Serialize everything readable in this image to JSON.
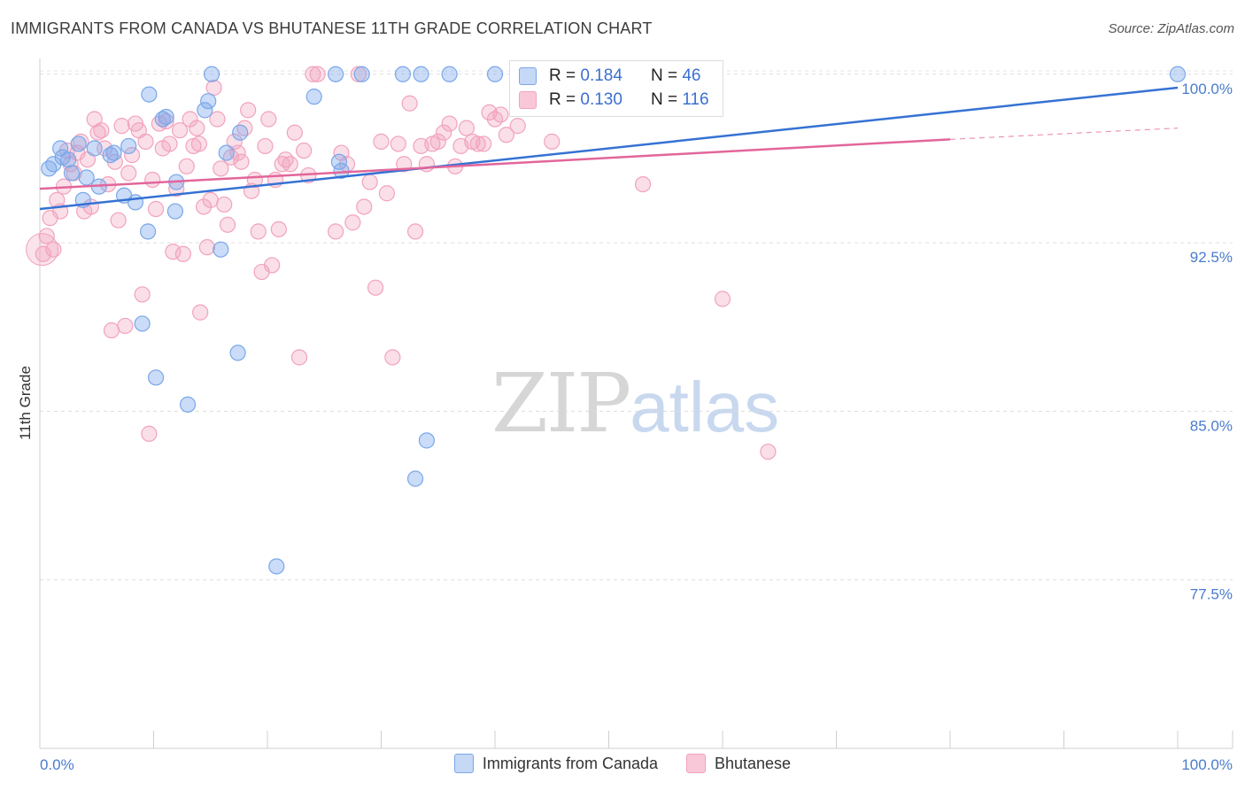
{
  "title": "IMMIGRANTS FROM CANADA VS BHUTANESE 11TH GRADE CORRELATION CHART",
  "source": "Source: ZipAtlas.com",
  "watermark": {
    "zip": "ZIP",
    "atlas": "atlas"
  },
  "legend": {
    "rows": [
      {
        "r_label": "R = ",
        "r_value": "0.184",
        "n_label": "N = ",
        "n_value": "46"
      },
      {
        "r_label": "R = ",
        "r_value": "0.130",
        "n_label": "N = ",
        "n_value": "116"
      }
    ]
  },
  "chart_data": {
    "type": "scatter",
    "title": "IMMIGRANTS FROM CANADA VS BHUTANESE 11TH GRADE CORRELATION CHART",
    "xlabel": "",
    "ylabel": "11th Grade",
    "xlim": [
      0,
      100
    ],
    "ylim": [
      70,
      100.7
    ],
    "x_tick_labels": [
      "0.0%",
      "100.0%"
    ],
    "y_ticks": [
      {
        "value": 100.0,
        "label": "100.0%"
      },
      {
        "value": 92.5,
        "label": "92.5%"
      },
      {
        "value": 85.0,
        "label": "85.0%"
      },
      {
        "value": 77.5,
        "label": "77.5%"
      }
    ],
    "grid": "horizontal dashed",
    "legend_position": "top-center",
    "series": [
      {
        "name": "Immigrants from Canada",
        "color": "#7aa7ea",
        "line_color": "#3572d4",
        "trend": {
          "x": [
            0,
            100
          ],
          "y": [
            94.0,
            99.4
          ]
        },
        "points": [
          [
            0.8,
            95.8
          ],
          [
            1.2,
            96.0
          ],
          [
            1.8,
            96.7
          ],
          [
            2.0,
            96.3
          ],
          [
            2.5,
            96.2
          ],
          [
            2.8,
            95.6
          ],
          [
            3.4,
            96.9
          ],
          [
            3.8,
            94.4
          ],
          [
            4.1,
            95.4
          ],
          [
            4.8,
            96.7
          ],
          [
            5.2,
            95.0
          ],
          [
            6.2,
            96.4
          ],
          [
            6.5,
            96.5
          ],
          [
            7.4,
            94.6
          ],
          [
            7.8,
            96.8
          ],
          [
            8.4,
            94.3
          ],
          [
            9.0,
            88.9
          ],
          [
            9.5,
            93.0
          ],
          [
            9.6,
            99.1
          ],
          [
            10.2,
            86.5
          ],
          [
            10.8,
            98.0
          ],
          [
            11.1,
            98.1
          ],
          [
            11.9,
            93.9
          ],
          [
            12.0,
            95.2
          ],
          [
            13.0,
            85.3
          ],
          [
            14.5,
            98.4
          ],
          [
            14.8,
            98.8
          ],
          [
            15.1,
            100.0
          ],
          [
            15.9,
            92.2
          ],
          [
            16.4,
            96.5
          ],
          [
            17.4,
            87.6
          ],
          [
            17.6,
            97.4
          ],
          [
            20.8,
            78.1
          ],
          [
            24.1,
            99.0
          ],
          [
            26.0,
            100.0
          ],
          [
            26.3,
            96.1
          ],
          [
            26.5,
            95.7
          ],
          [
            28.3,
            100.0
          ],
          [
            31.9,
            100.0
          ],
          [
            33.0,
            82.0
          ],
          [
            33.5,
            100.0
          ],
          [
            34.0,
            83.7
          ],
          [
            36.0,
            100.0
          ],
          [
            40.0,
            100.0
          ],
          [
            45.0,
            100.0
          ],
          [
            100.0,
            100.0
          ]
        ]
      },
      {
        "name": "Bhutanese",
        "color": "#f2a2bd",
        "line_color": "#e2669a",
        "trend": {
          "x": [
            0,
            80
          ],
          "y": [
            94.9,
            97.1
          ]
        },
        "trend_dashed": {
          "x": [
            80,
            100
          ],
          "y": [
            97.1,
            97.6
          ]
        },
        "points": [
          [
            0.3,
            92.0
          ],
          [
            0.6,
            92.8
          ],
          [
            0.9,
            93.6
          ],
          [
            1.2,
            92.2
          ],
          [
            1.5,
            94.4
          ],
          [
            1.8,
            93.9
          ],
          [
            2.1,
            95.0
          ],
          [
            2.4,
            96.6
          ],
          [
            2.7,
            96.0
          ],
          [
            3.0,
            95.6
          ],
          [
            3.3,
            96.5
          ],
          [
            3.6,
            97.0
          ],
          [
            3.9,
            93.9
          ],
          [
            4.2,
            96.2
          ],
          [
            4.5,
            94.1
          ],
          [
            4.8,
            98.0
          ],
          [
            5.1,
            97.4
          ],
          [
            5.4,
            97.5
          ],
          [
            5.7,
            96.7
          ],
          [
            6.0,
            95.1
          ],
          [
            6.3,
            88.6
          ],
          [
            6.6,
            96.1
          ],
          [
            6.9,
            93.5
          ],
          [
            7.2,
            97.7
          ],
          [
            7.5,
            88.8
          ],
          [
            7.8,
            95.6
          ],
          [
            8.1,
            96.4
          ],
          [
            8.4,
            97.8
          ],
          [
            8.7,
            97.5
          ],
          [
            9.0,
            90.2
          ],
          [
            9.3,
            97.0
          ],
          [
            9.6,
            84.0
          ],
          [
            9.9,
            95.3
          ],
          [
            10.2,
            94.0
          ],
          [
            10.5,
            97.8
          ],
          [
            10.8,
            96.7
          ],
          [
            11.1,
            97.9
          ],
          [
            11.4,
            96.9
          ],
          [
            11.7,
            92.1
          ],
          [
            12.0,
            94.9
          ],
          [
            12.3,
            97.5
          ],
          [
            12.6,
            92.0
          ],
          [
            12.9,
            95.9
          ],
          [
            13.2,
            98.0
          ],
          [
            13.5,
            96.8
          ],
          [
            13.8,
            97.6
          ],
          [
            14.1,
            89.4
          ],
          [
            14.4,
            94.1
          ],
          [
            14.7,
            92.3
          ],
          [
            15.0,
            94.4
          ],
          [
            15.3,
            99.4
          ],
          [
            15.6,
            98.0
          ],
          [
            15.9,
            95.8
          ],
          [
            16.2,
            94.2
          ],
          [
            16.5,
            93.3
          ],
          [
            16.8,
            96.3
          ],
          [
            17.1,
            97.0
          ],
          [
            17.4,
            96.5
          ],
          [
            17.7,
            96.1
          ],
          [
            18.0,
            97.6
          ],
          [
            18.3,
            98.4
          ],
          [
            18.6,
            94.8
          ],
          [
            18.9,
            95.3
          ],
          [
            19.2,
            93.0
          ],
          [
            19.5,
            91.2
          ],
          [
            19.8,
            96.8
          ],
          [
            20.1,
            98.0
          ],
          [
            20.4,
            91.5
          ],
          [
            20.7,
            95.3
          ],
          [
            21.0,
            93.1
          ],
          [
            21.3,
            96.0
          ],
          [
            21.6,
            96.2
          ],
          [
            22.0,
            96.0
          ],
          [
            22.4,
            97.4
          ],
          [
            22.8,
            87.4
          ],
          [
            23.2,
            96.6
          ],
          [
            23.6,
            95.5
          ],
          [
            24.0,
            100.0
          ],
          [
            24.4,
            100.0
          ],
          [
            26.0,
            93.0
          ],
          [
            26.5,
            96.5
          ],
          [
            27.0,
            96.0
          ],
          [
            27.5,
            93.4
          ],
          [
            28.0,
            100.0
          ],
          [
            28.5,
            94.1
          ],
          [
            29.0,
            95.2
          ],
          [
            29.5,
            90.5
          ],
          [
            30.0,
            97.0
          ],
          [
            30.5,
            94.7
          ],
          [
            31.0,
            87.4
          ],
          [
            31.5,
            96.9
          ],
          [
            32.0,
            96.0
          ],
          [
            32.5,
            98.7
          ],
          [
            33.0,
            93.0
          ],
          [
            33.5,
            96.8
          ],
          [
            34.0,
            96.0
          ],
          [
            34.5,
            96.9
          ],
          [
            35.0,
            97.0
          ],
          [
            35.5,
            97.4
          ],
          [
            36.0,
            97.8
          ],
          [
            36.5,
            95.9
          ],
          [
            37.0,
            96.8
          ],
          [
            37.5,
            97.6
          ],
          [
            38.0,
            97.0
          ],
          [
            38.5,
            96.9
          ],
          [
            39.0,
            96.9
          ],
          [
            39.5,
            98.3
          ],
          [
            40.0,
            98.0
          ],
          [
            40.5,
            98.2
          ],
          [
            41.0,
            97.3
          ],
          [
            42.0,
            97.7
          ],
          [
            45.0,
            97.0
          ],
          [
            53.0,
            95.1
          ],
          [
            60.0,
            90.0
          ],
          [
            64.0,
            83.2
          ],
          [
            14.0,
            96.9
          ]
        ]
      }
    ]
  }
}
